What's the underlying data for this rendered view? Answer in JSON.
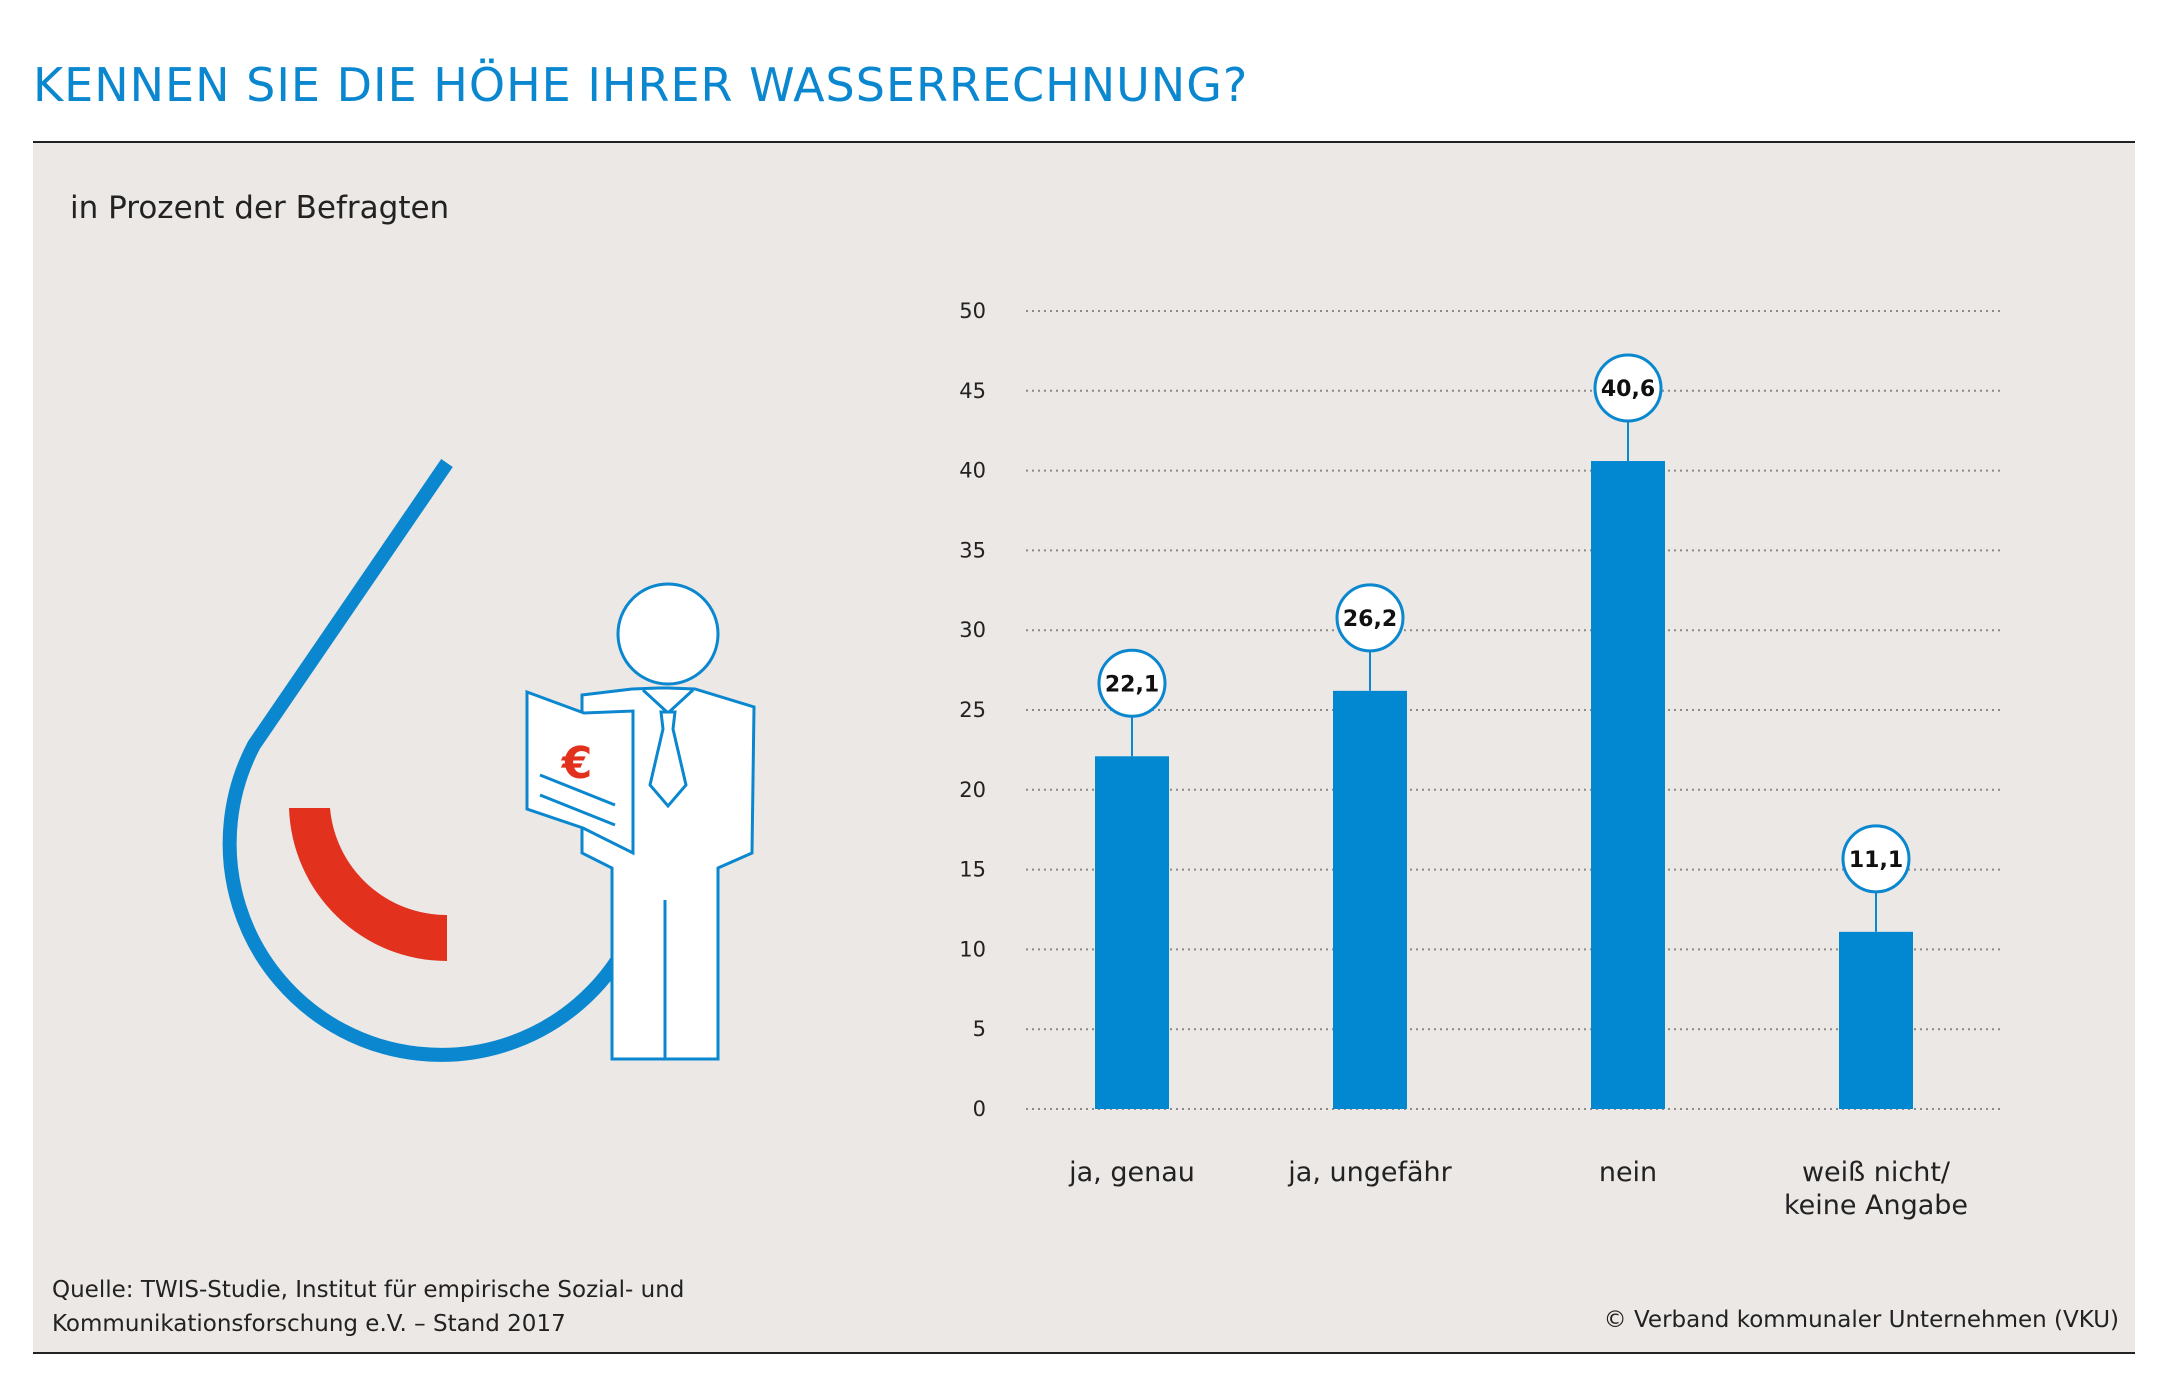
{
  "header": {
    "title": "KENNEN SIE DIE HÖHE IHRER WASSERRECHNUNG?",
    "subtitle": "in Prozent der Befragten"
  },
  "footer": {
    "source_line1": "Quelle: TWIS-Studie, Institut für empirische Sozial- und",
    "source_line2": "Kommunikationsforschung e.V. – Stand 2017",
    "copyright": "© Verband kommunaler Unternehmen (VKU)"
  },
  "illustration": {
    "icons": [
      "water-drop-icon",
      "person-icon",
      "invoice-icon"
    ],
    "euro_symbol": "€"
  },
  "colors": {
    "accent_blue": "#0a87cf",
    "bar_blue": "#0288d1",
    "red": "#e2321d",
    "background": "#ebe8e6"
  },
  "chart_data": {
    "type": "bar",
    "categories": [
      [
        "ja, genau"
      ],
      [
        "ja, ungefähr"
      ],
      [
        "nein"
      ],
      [
        "weiß nicht/",
        "keine Angabe"
      ]
    ],
    "values": [
      22.1,
      26.2,
      40.6,
      11.1
    ],
    "value_labels": [
      "22,1",
      "26,2",
      "40,6",
      "11,1"
    ],
    "yticks": [
      0,
      5,
      10,
      15,
      20,
      25,
      30,
      35,
      40,
      45,
      50
    ],
    "ylim": [
      0,
      50
    ],
    "grid": true,
    "xlabel": "",
    "ylabel": ""
  }
}
